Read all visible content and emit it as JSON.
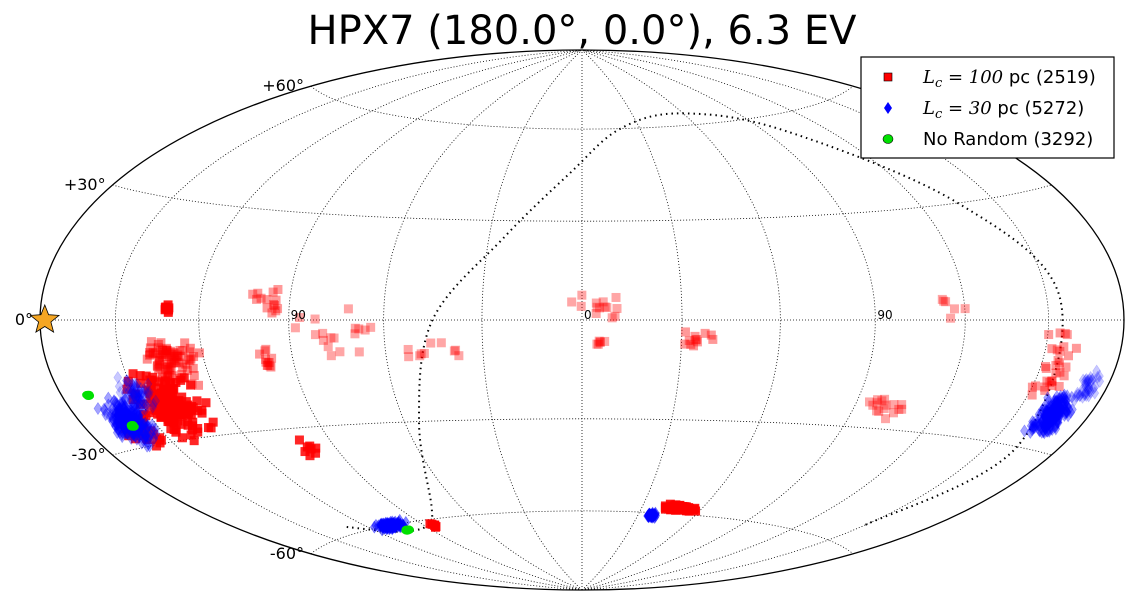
{
  "chart_data": {
    "type": "scatter",
    "projection": "Hammer-Aitoff (all-sky)",
    "title": "HPX7 (180.0°, 0.0°), 6.3 EV",
    "center": {
      "lon": 180.0,
      "lat": 0.0
    },
    "grid": true,
    "legend_position": "top-right",
    "lat_ticks": [
      {
        "value": 60,
        "label": "+60°"
      },
      {
        "value": 30,
        "label": "+30°"
      },
      {
        "value": 0,
        "label": "0°"
      },
      {
        "value": -30,
        "label": "-30°"
      },
      {
        "value": -60,
        "label": "-60°"
      }
    ],
    "lon_ticks": [
      {
        "value": -90,
        "label": "90"
      },
      {
        "value": 0,
        "label": "0"
      },
      {
        "value": 90,
        "label": "90"
      }
    ],
    "source_marker": {
      "lon": -178,
      "lat": 0,
      "color": "#f5a623",
      "icon": "star-icon"
    },
    "series": [
      {
        "name": "L_c = 100 pc (2519)",
        "legend_prefix": "L",
        "legend_sub": "c",
        "legend_eq": " = 100",
        "legend_suffix": " pc (2519)",
        "marker": "square",
        "color": "#ff0000",
        "clusters": [
          {
            "lon": -140,
            "lat": -21,
            "spread_lon": 16,
            "spread_lat": 10,
            "count": 160,
            "alpha": 0.85
          },
          {
            "lon": -132,
            "lat": -10,
            "spread_lon": 14,
            "spread_lat": 8,
            "count": 80,
            "alpha": 0.45
          },
          {
            "lon": -158,
            "lat": -26,
            "spread_lon": 8,
            "spread_lat": 6,
            "count": 50,
            "alpha": 0.85
          },
          {
            "lon": -131,
            "lat": 3,
            "spread_lon": 1.5,
            "spread_lat": 1.5,
            "count": 8,
            "alpha": 0.9
          },
          {
            "lon": -100,
            "lat": -11,
            "spread_lon": 5,
            "spread_lat": 4,
            "count": 12,
            "alpha": 0.4
          },
          {
            "lon": -96,
            "lat": 5,
            "spread_lon": 8,
            "spread_lat": 6,
            "count": 14,
            "alpha": 0.4
          },
          {
            "lon": -74,
            "lat": -4,
            "spread_lon": 20,
            "spread_lat": 10,
            "count": 18,
            "alpha": 0.35
          },
          {
            "lon": -45,
            "lat": -10,
            "spread_lon": 14,
            "spread_lat": 6,
            "count": 10,
            "alpha": 0.35
          },
          {
            "lon": 5,
            "lat": 4,
            "spread_lon": 10,
            "spread_lat": 4,
            "count": 14,
            "alpha": 0.35
          },
          {
            "lon": 5,
            "lat": -7,
            "spread_lon": 4,
            "spread_lat": 4,
            "count": 6,
            "alpha": 0.35
          },
          {
            "lon": 35,
            "lat": -6,
            "spread_lon": 8,
            "spread_lat": 4,
            "count": 12,
            "alpha": 0.4
          },
          {
            "lon": 100,
            "lat": -24,
            "spread_lon": 12,
            "spread_lat": 5,
            "count": 16,
            "alpha": 0.35
          },
          {
            "lon": 115,
            "lat": 3,
            "spread_lon": 8,
            "spread_lat": 5,
            "count": 6,
            "alpha": 0.35
          },
          {
            "lon": 155,
            "lat": -12,
            "spread_lon": 10,
            "spread_lat": 12,
            "count": 30,
            "alpha": 0.4
          },
          {
            "lon": 48,
            "lat": -58,
            "spread_lon": 12,
            "spread_lat": 1.5,
            "count": 60,
            "alpha": 0.9
          },
          {
            "lon": -85,
            "lat": -62,
            "spread_lon": 2,
            "spread_lat": 1,
            "count": 6,
            "alpha": 0.9
          },
          {
            "lon": -100,
            "lat": -36,
            "spread_lon": 4,
            "spread_lat": 6,
            "count": 8,
            "alpha": 0.85
          }
        ]
      },
      {
        "name": "L_c = 30 pc (5272)",
        "legend_prefix": "L",
        "legend_sub": "c",
        "legend_eq": " = 30",
        "legend_suffix": " pc (5272)",
        "marker": "diamond",
        "color": "#0000ff",
        "clusters": [
          {
            "lon": -160,
            "lat": -24,
            "spread_lon": 10,
            "spread_lat": 7,
            "count": 260,
            "alpha": 0.6
          },
          {
            "lon": -150,
            "lat": -18,
            "spread_lon": 8,
            "spread_lat": 6,
            "count": 80,
            "alpha": 0.35
          },
          {
            "lon": 165,
            "lat": -22,
            "spread_lon": 8,
            "spread_lat": 6,
            "count": 230,
            "alpha": 0.6
          },
          {
            "lon": 172,
            "lat": -14,
            "spread_lon": 5,
            "spread_lat": 5,
            "count": 40,
            "alpha": 0.35
          },
          {
            "lon": -107,
            "lat": -60,
            "spread_lon": 12,
            "spread_lat": 1.5,
            "count": 120,
            "alpha": 0.8
          },
          {
            "lon": 37,
            "lat": -61,
            "spread_lon": 4,
            "spread_lat": 1,
            "count": 40,
            "alpha": 0.85
          }
        ]
      },
      {
        "name": "No Random (3292)",
        "legend_suffix": "No Random (3292)",
        "marker": "circle",
        "color": "#00e000",
        "clusters": [
          {
            "lon": -169,
            "lat": -17,
            "spread_lon": 0.6,
            "spread_lat": 0.5,
            "count": 6,
            "alpha": 1
          },
          {
            "lon": -160,
            "lat": -25,
            "spread_lon": 0.6,
            "spread_lat": 0.5,
            "count": 6,
            "alpha": 1
          },
          {
            "lon": -103,
            "lat": -62,
            "spread_lon": 1.5,
            "spread_lat": 0.4,
            "count": 14,
            "alpha": 1
          }
        ]
      }
    ],
    "galactic_plane_curve": [
      {
        "lon": -130,
        "lat": -58
      },
      {
        "lon": -110,
        "lat": -62
      },
      {
        "lon": -90,
        "lat": -62
      },
      {
        "lon": -75,
        "lat": -57
      },
      {
        "lon": -55,
        "lat": -30
      },
      {
        "lon": -45,
        "lat": 0
      },
      {
        "lon": -25,
        "lat": 25
      },
      {
        "lon": -5,
        "lat": 45
      },
      {
        "lon": 20,
        "lat": 60
      },
      {
        "lon": 60,
        "lat": 64
      },
      {
        "lon": 100,
        "lat": 55
      },
      {
        "lon": 135,
        "lat": 30
      },
      {
        "lon": 155,
        "lat": 5
      },
      {
        "lon": 162,
        "lat": -30
      },
      {
        "lon": 150,
        "lat": -55
      }
    ]
  }
}
